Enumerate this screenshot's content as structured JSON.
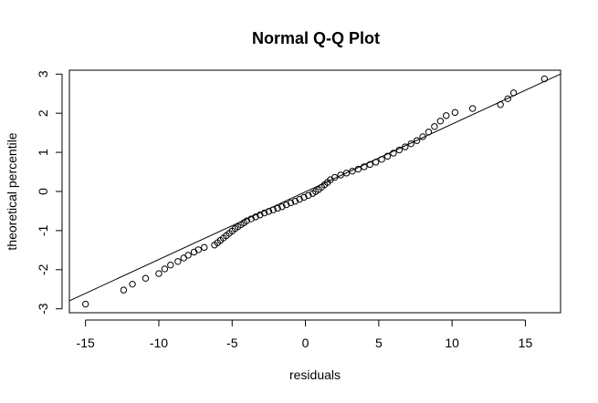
{
  "chart_data": {
    "type": "scatter",
    "title": "Normal Q-Q Plot",
    "xlabel": "residuals",
    "ylabel": "theoretical percentile",
    "xlim": [
      -16.1,
      17.4
    ],
    "ylim": [
      -3.1,
      3.1
    ],
    "x_ticks": [
      -15,
      -10,
      -5,
      0,
      5,
      10,
      15
    ],
    "y_ticks": [
      -3,
      -2,
      -1,
      0,
      1,
      2,
      3
    ],
    "x_tick_labels": [
      "-15",
      "-10",
      "-5",
      "0",
      "5",
      "10",
      "15"
    ],
    "y_tick_labels": [
      "-3",
      "-2",
      "-1",
      "0",
      "1",
      "2",
      "3"
    ],
    "grid": false,
    "reference_line": {
      "slope": 0.1731,
      "intercept": -0.0085
    },
    "points": [
      [
        -15.0,
        -2.88
      ],
      [
        -12.4,
        -2.52
      ],
      [
        -11.8,
        -2.37
      ],
      [
        -10.9,
        -2.22
      ],
      [
        -10.0,
        -2.1
      ],
      [
        -9.6,
        -1.98
      ],
      [
        -9.2,
        -1.88
      ],
      [
        -8.7,
        -1.79
      ],
      [
        -8.3,
        -1.7
      ],
      [
        -8.0,
        -1.63
      ],
      [
        -7.6,
        -1.55
      ],
      [
        -7.3,
        -1.49
      ],
      [
        -6.9,
        -1.43
      ],
      [
        -6.2,
        -1.37
      ],
      [
        -6.0,
        -1.31
      ],
      [
        -5.8,
        -1.25
      ],
      [
        -5.6,
        -1.19
      ],
      [
        -5.4,
        -1.13
      ],
      [
        -5.2,
        -1.07
      ],
      [
        -5.0,
        -1.01
      ],
      [
        -4.8,
        -0.95
      ],
      [
        -4.6,
        -0.9
      ],
      [
        -4.4,
        -0.85
      ],
      [
        -4.2,
        -0.8
      ],
      [
        -4.0,
        -0.75
      ],
      [
        -3.7,
        -0.7
      ],
      [
        -3.4,
        -0.65
      ],
      [
        -3.1,
        -0.6
      ],
      [
        -2.8,
        -0.55
      ],
      [
        -2.5,
        -0.51
      ],
      [
        -2.2,
        -0.47
      ],
      [
        -1.9,
        -0.43
      ],
      [
        -1.6,
        -0.39
      ],
      [
        -1.3,
        -0.34
      ],
      [
        -1.0,
        -0.29
      ],
      [
        -0.7,
        -0.25
      ],
      [
        -0.4,
        -0.2
      ],
      [
        -0.1,
        -0.15
      ],
      [
        0.2,
        -0.1
      ],
      [
        0.5,
        -0.05
      ],
      [
        0.7,
        0.0
      ],
      [
        0.9,
        0.05
      ],
      [
        1.1,
        0.11
      ],
      [
        1.3,
        0.17
      ],
      [
        1.5,
        0.23
      ],
      [
        1.7,
        0.3
      ],
      [
        2.0,
        0.36
      ],
      [
        2.4,
        0.42
      ],
      [
        2.8,
        0.47
      ],
      [
        3.2,
        0.52
      ],
      [
        3.6,
        0.57
      ],
      [
        4.0,
        0.63
      ],
      [
        4.4,
        0.69
      ],
      [
        4.8,
        0.75
      ],
      [
        5.2,
        0.82
      ],
      [
        5.6,
        0.9
      ],
      [
        6.0,
        0.98
      ],
      [
        6.4,
        1.06
      ],
      [
        6.8,
        1.14
      ],
      [
        7.2,
        1.22
      ],
      [
        7.6,
        1.3
      ],
      [
        8.0,
        1.4
      ],
      [
        8.4,
        1.52
      ],
      [
        8.8,
        1.66
      ],
      [
        9.2,
        1.8
      ],
      [
        9.6,
        1.94
      ],
      [
        10.2,
        2.02
      ],
      [
        11.4,
        2.12
      ],
      [
        13.3,
        2.22
      ],
      [
        13.8,
        2.37
      ],
      [
        14.2,
        2.52
      ],
      [
        16.3,
        2.88
      ]
    ]
  }
}
